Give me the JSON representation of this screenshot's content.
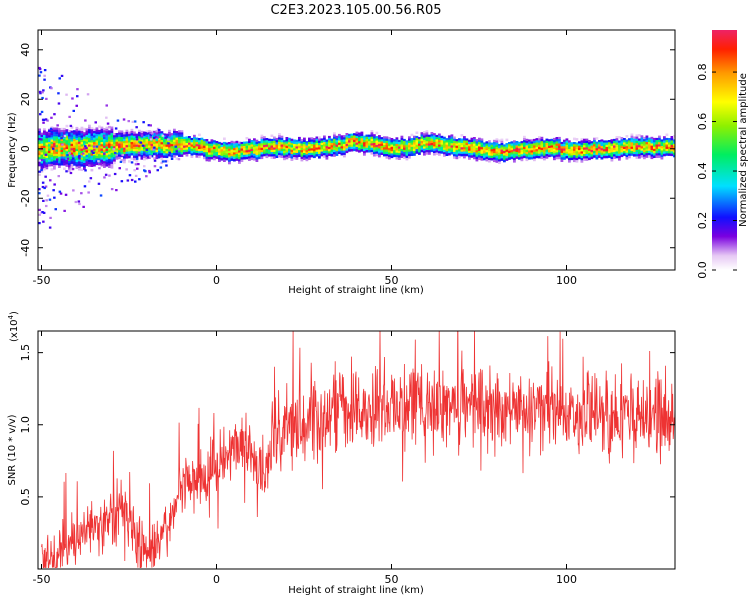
{
  "title": "C2E3.2023.105.00.56.R05",
  "chart_data": [
    {
      "type": "heatmap",
      "xlabel": "Height of straight line (km)",
      "ylabel": "Frequency (Hz)",
      "xlim": [
        -51,
        131
      ],
      "ylim": [
        -49,
        48
      ],
      "xticks": [
        -50,
        0,
        50,
        100
      ],
      "yticks": [
        -40,
        -20,
        0,
        20,
        40
      ],
      "ridge": {
        "x": [
          -50,
          -45,
          -40,
          -35,
          -30,
          -25,
          -20,
          -15,
          -10,
          -5,
          0,
          5,
          10,
          15,
          20,
          25,
          30,
          35,
          40,
          45,
          50,
          55,
          60,
          65,
          70,
          75,
          80,
          85,
          90,
          95,
          100,
          105,
          110,
          115,
          120,
          125,
          130
        ],
        "y": [
          0,
          1,
          0,
          1,
          1,
          2,
          2,
          2,
          2,
          1,
          0,
          -1,
          0,
          1,
          1,
          0,
          1,
          2,
          3,
          2,
          1,
          1,
          3,
          2,
          1,
          0,
          -1,
          0,
          0,
          1,
          0,
          0,
          0,
          1,
          1,
          1,
          1
        ]
      },
      "colorbar": {
        "label": "Normalized spectral amplitude",
        "range": [
          0,
          0.97
        ],
        "ticks": [
          "0.0",
          "0.2",
          "0.4",
          "0.6",
          "0.8"
        ]
      }
    },
    {
      "type": "line",
      "xlabel": "Height of straight line (km)",
      "ylabel": "SNR (10 * v/v)",
      "multiplier": "(x10",
      "multiplier_exp": "4",
      "xlim": [
        -51,
        131
      ],
      "ylim": [
        0,
        1.65
      ],
      "xticks": [
        -50,
        0,
        50,
        100
      ],
      "yticks": [
        "0.5",
        "1.0",
        "1.5"
      ],
      "color": "#ee3333",
      "series": [
        {
          "x": [
            -50,
            -47,
            -44,
            -41,
            -38,
            -35,
            -32,
            -29,
            -26,
            -23,
            -20,
            -17,
            -14,
            -11,
            -8,
            -5,
            -2,
            1,
            4,
            7,
            10,
            13,
            16,
            19,
            22,
            25,
            28,
            31,
            34,
            37,
            40,
            43,
            46,
            49,
            52,
            55,
            58,
            61,
            64,
            67,
            70,
            73,
            76,
            79,
            82,
            85,
            88,
            91,
            94,
            97,
            100,
            103,
            106,
            109,
            112,
            115,
            118,
            121,
            124,
            127,
            130
          ],
          "y": [
            0.03,
            0.08,
            0.14,
            0.2,
            0.28,
            0.34,
            0.3,
            0.37,
            0.42,
            0.22,
            0.15,
            0.14,
            0.3,
            0.52,
            0.62,
            0.6,
            0.68,
            0.78,
            0.8,
            0.9,
            0.86,
            0.62,
            0.88,
            0.95,
            1.0,
            1.04,
            1.06,
            1.08,
            1.12,
            1.1,
            1.14,
            1.12,
            1.1,
            1.09,
            1.13,
            1.15,
            1.1,
            1.12,
            1.09,
            1.12,
            1.1,
            1.13,
            1.11,
            1.09,
            1.08,
            1.07,
            1.08,
            1.07,
            1.06,
            1.05,
            1.06,
            1.05,
            1.07,
            1.06,
            1.05,
            1.06,
            1.04,
            1.05,
            1.06,
            1.05,
            1.04
          ]
        }
      ]
    }
  ]
}
